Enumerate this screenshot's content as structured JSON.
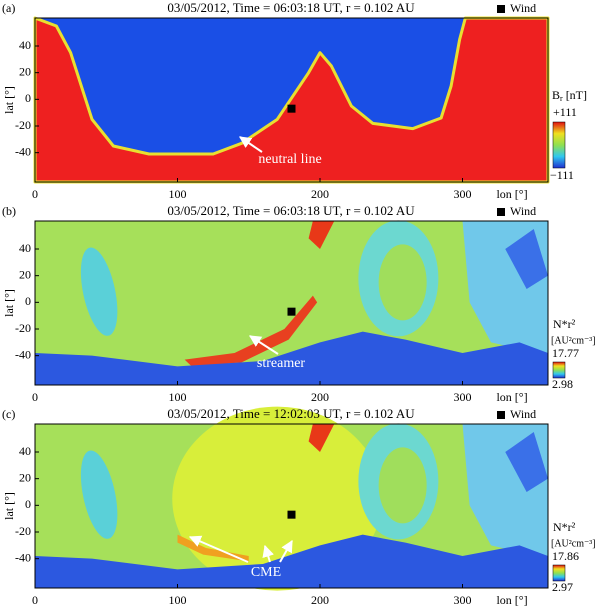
{
  "panels": [
    {
      "label": "(a)",
      "title": "03/05/2012,  Time = 06:03:18 UT,  r = 0.102 AU",
      "legend": "Wind",
      "xlabel": "lon [°]",
      "ylabel": "lat [°]",
      "xlim": [
        0,
        360
      ],
      "ylim": [
        -62,
        61
      ],
      "xticks": [
        0,
        100,
        200,
        300
      ],
      "yticks": [
        -40,
        -20,
        0,
        20,
        40
      ],
      "wind": {
        "lon": 180,
        "lat": -7
      },
      "colorbar": {
        "symbol": "B",
        "subscript": "r",
        "unit": "[nT]",
        "max": "+111",
        "min": "−111"
      },
      "annotation": "neutral line"
    },
    {
      "label": "(b)",
      "title": "03/05/2012,  Time = 06:03:18 UT,  r = 0.102 AU",
      "legend": "Wind",
      "xlabel": "lon [°]",
      "ylabel": "lat [°]",
      "xlim": [
        0,
        360
      ],
      "ylim": [
        -62,
        61
      ],
      "xticks": [
        0,
        100,
        200,
        300
      ],
      "yticks": [
        -40,
        -20,
        0,
        20,
        40
      ],
      "wind": {
        "lon": 180,
        "lat": -7
      },
      "colorbar": {
        "symbol": "N*r²",
        "unit": "[AU²cm⁻³]",
        "max": "17.77",
        "min": "2.98"
      },
      "annotation": "streamer"
    },
    {
      "label": "(c)",
      "title": "03/05/2012,  Time = 12:02:03 UT,  r = 0.102 AU",
      "legend": "Wind",
      "xlabel": "lon [°]",
      "ylabel": "lat [°]",
      "xlim": [
        0,
        360
      ],
      "ylim": [
        -62,
        61
      ],
      "xticks": [
        0,
        100,
        200,
        300
      ],
      "yticks": [
        -40,
        -20,
        0,
        20,
        40
      ],
      "wind": {
        "lon": 180,
        "lat": -7
      },
      "colorbar": {
        "symbol": "N*r²",
        "unit": "[AU²cm⁻³]",
        "max": "17.86",
        "min": "2.97"
      },
      "annotation": "CME"
    }
  ]
}
